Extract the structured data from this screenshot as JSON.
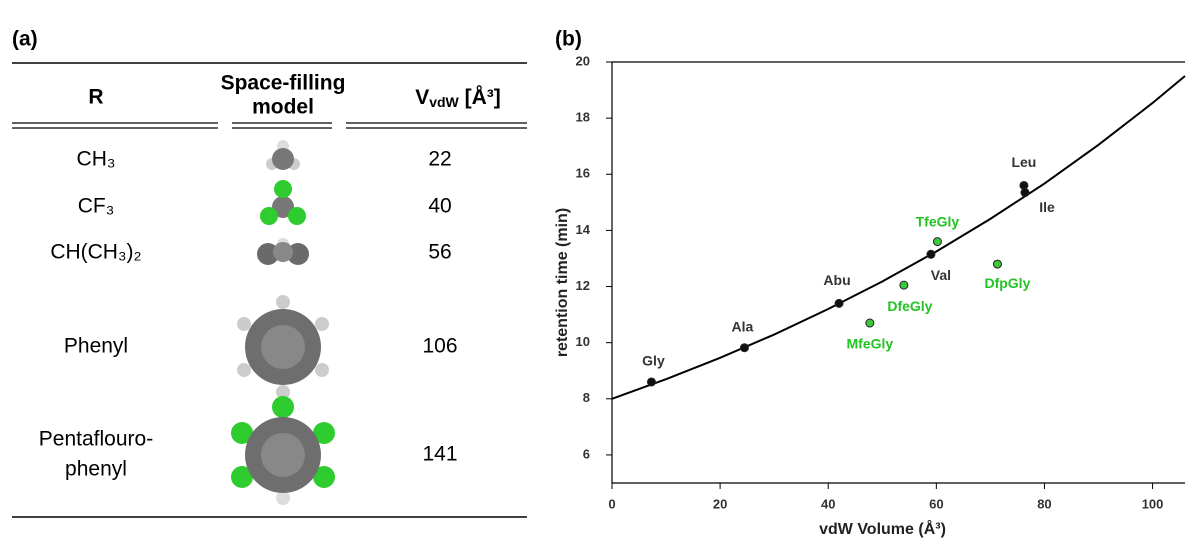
{
  "table": {
    "label": "(a)",
    "headers": [
      "R",
      [
        "Space-filling",
        "model"
      ],
      {
        "symbol": "V",
        "subscript": "vdW",
        "unit": "[Å³]"
      }
    ],
    "rows": [
      [
        "CH₃",
        22
      ],
      [
        "CF₃",
        40
      ],
      [
        "CH(CH₃)₂",
        56
      ],
      [
        "Phenyl",
        106
      ],
      [
        [
          "Pentaflouro-",
          "phenyl"
        ],
        141
      ]
    ]
  },
  "chart_data": {
    "type": "scatter",
    "panel_label": "(b)",
    "xlabel": "vdW Volume (Å³)",
    "ylabel": "retention time (min)",
    "xlim": [
      0,
      106
    ],
    "ylim": [
      5,
      20
    ],
    "xticks": [
      0,
      20,
      40,
      60,
      80,
      100
    ],
    "yticks": [
      6,
      8,
      10,
      12,
      14,
      16,
      18,
      20
    ],
    "labels": [
      "Gly",
      "Ala",
      "Abu",
      "Val",
      "Leu",
      "Ile",
      "MfeGly",
      "DfeGly",
      "TfeGly",
      "DfpGly"
    ],
    "x": [
      7.3,
      24.5,
      42,
      59,
      76.2,
      76.4,
      47.7,
      54,
      60.2,
      71.3
    ],
    "values": [
      8.6,
      9.82,
      11.4,
      13.15,
      15.6,
      15.35,
      10.7,
      12.05,
      13.6,
      12.8
    ],
    "colors": [
      "#111111",
      "#111111",
      "#111111",
      "#111111",
      "#111111",
      "#111111",
      "#3cc83c",
      "#3cc83c",
      "#3cc83c",
      "#3cc83c"
    ],
    "label_colors": [
      "#333333",
      "#333333",
      "#333333",
      "#333333",
      "#333333",
      "#333333",
      "#22c322",
      "#22c322",
      "#22c322",
      "#22c322"
    ],
    "fit_curve": {
      "color": "#000000",
      "x": [
        0,
        10,
        20,
        30,
        40,
        50,
        60,
        70,
        80,
        90,
        100,
        106
      ],
      "y": [
        8,
        8.7,
        9.46,
        10.29,
        11.2,
        12.18,
        13.25,
        14.41,
        15.67,
        17.05,
        18.54,
        19.5
      ]
    }
  }
}
